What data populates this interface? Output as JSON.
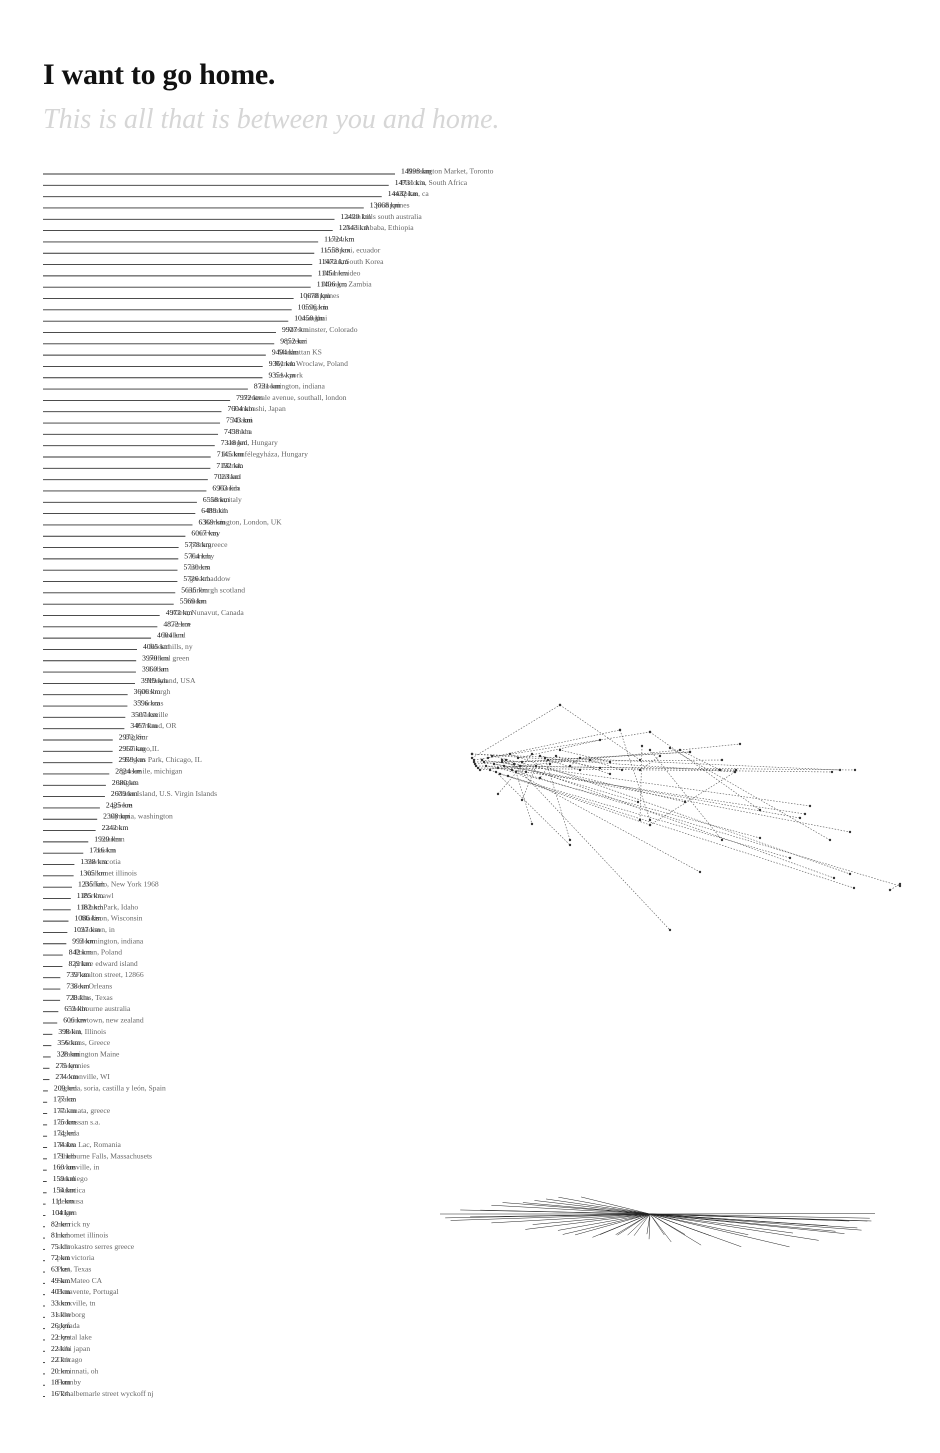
{
  "title": "I want to go home.",
  "subtitle": "This is all that is between you and home.",
  "chart_data": [
    {
      "type": "bar",
      "orientation": "horizontal",
      "unit": "km",
      "series": [
        {
          "value": 14998,
          "label": "Kensington Market, Toronto"
        },
        {
          "value": 14731,
          "label": "Pretoria, South Africa"
        },
        {
          "value": 14432,
          "label": "milpitas, ca"
        },
        {
          "value": 13668,
          "label": "philippines"
        },
        {
          "value": 12420,
          "label": "eden hills south australia"
        },
        {
          "value": 12343,
          "label": "Addis Ababa, Ethiopia"
        },
        {
          "value": 11724,
          "label": "cebu"
        },
        {
          "value": 11558,
          "label": "cotopaxi, ecuador"
        },
        {
          "value": 11472,
          "label": "Seoul, South Korea"
        },
        {
          "value": 11451,
          "label": "Montevideo"
        },
        {
          "value": 11406,
          "label": "Mongu, Zambia"
        },
        {
          "value": 10678,
          "label": "philippines"
        },
        {
          "value": 10596,
          "label": "bulgaria"
        },
        {
          "value": 10450,
          "label": "shanghai"
        },
        {
          "value": 9927,
          "label": "Westminster, Colorado"
        },
        {
          "value": 9852,
          "label": "prienai"
        },
        {
          "value": 9494,
          "label": "Manhattan KS"
        },
        {
          "value": 9361,
          "label": "Rynek Wroclaw, Poland"
        },
        {
          "value": 9351,
          "label": "new york"
        },
        {
          "value": 8731,
          "label": "bloomington, indiana"
        },
        {
          "value": 7972,
          "label": "brentvale avenue, southall, london"
        },
        {
          "value": 7604,
          "label": "Funabashi, Japan"
        },
        {
          "value": 7543,
          "label": "Miami"
        },
        {
          "value": 7458,
          "label": "Omaha"
        },
        {
          "value": 7318,
          "label": "szeged, Hungary"
        },
        {
          "value": 7145,
          "label": "Kiskunfélegyháza, Hungary"
        },
        {
          "value": 7132,
          "label": "Minsk"
        },
        {
          "value": 7023,
          "label": "ireland"
        },
        {
          "value": 6963,
          "label": "Florida"
        },
        {
          "value": 6558,
          "label": "rome, italy"
        },
        {
          "value": 6489,
          "label": "Brazil"
        },
        {
          "value": 6369,
          "label": "Kensington, London, UK"
        },
        {
          "value": 6067,
          "label": "norway"
        },
        {
          "value": 5778,
          "label": "patra greece"
        },
        {
          "value": 5764,
          "label": "Formby"
        },
        {
          "value": 5730,
          "label": "athens"
        },
        {
          "value": 5726,
          "label": "great baddow"
        },
        {
          "value": 5635,
          "label": "edinburgh scotland"
        },
        {
          "value": 5569,
          "label": "london"
        },
        {
          "value": 4972,
          "label": "Alert, Nunavut, Canada"
        },
        {
          "value": 4872,
          "label": "Greece"
        },
        {
          "value": 4604,
          "label": "Iceland"
        },
        {
          "value": 4005,
          "label": "forest hills, ny"
        },
        {
          "value": 3970,
          "label": "bethnal green"
        },
        {
          "value": 3960,
          "label": "Cuba"
        },
        {
          "value": 3919,
          "label": "Maryland, USA"
        },
        {
          "value": 3606,
          "label": "pittsburgh"
        },
        {
          "value": 3596,
          "label": "Caracas"
        },
        {
          "value": 3507,
          "label": "evansville"
        },
        {
          "value": 3467,
          "label": "Portland, OR"
        },
        {
          "value": 2972,
          "label": "Big Sur"
        },
        {
          "value": 2967,
          "label": "Chicago,IL"
        },
        {
          "value": 2959,
          "label": "Rogers Park, Chicago, IL"
        },
        {
          "value": 2824,
          "label": "grosse ile, michigan"
        },
        {
          "value": 2680,
          "label": "bogota"
        },
        {
          "value": 2639,
          "label": "Water Island, U.S. Virgin Islands"
        },
        {
          "value": 2425,
          "label": "greece"
        },
        {
          "value": 2308,
          "label": "olympia, washington"
        },
        {
          "value": 2242,
          "label": "cuba"
        },
        {
          "value": 1929,
          "label": "haarlem"
        },
        {
          "value": 1716,
          "label": "boston"
        },
        {
          "value": 1338,
          "label": "nova scotia"
        },
        {
          "value": 1305,
          "label": "mahomet illinois"
        },
        {
          "value": 1235,
          "label": "Buffalo, New York 1968"
        },
        {
          "value": 1185,
          "label": "Porthcawl"
        },
        {
          "value": 1182,
          "label": "Island Park, Idaho"
        },
        {
          "value": 1086,
          "label": "Madison, Wisconsin"
        },
        {
          "value": 1037,
          "label": "madison, in"
        },
        {
          "value": 993,
          "label": "bloomington, indiana"
        },
        {
          "value": 842,
          "label": "Poznan, Poland"
        },
        {
          "value": 829,
          "label": "prince edward island"
        },
        {
          "value": 739,
          "label": "57 walton street, 12866"
        },
        {
          "value": 738,
          "label": "New Orleans"
        },
        {
          "value": 728,
          "label": "Dallas, Texas"
        },
        {
          "value": 653,
          "label": "melbourne australia"
        },
        {
          "value": 606,
          "label": "arrowtown, new zealand"
        },
        {
          "value": 398,
          "label": "Joliet, Illinois"
        },
        {
          "value": 356,
          "label": "Athens, Greece"
        },
        {
          "value": 328,
          "label": "Farmington Maine"
        },
        {
          "value": 275,
          "label": "moyrnies"
        },
        {
          "value": 274,
          "label": "Hortonville, WI"
        },
        {
          "value": 209,
          "label": "ágreda, soria, castilla y león, Spain"
        },
        {
          "value": 177,
          "label": "patra"
        },
        {
          "value": 177,
          "label": "kalamata, greece"
        },
        {
          "value": 175,
          "label": "ardrossan s.a."
        },
        {
          "value": 174,
          "label": "ágreda"
        },
        {
          "value": 174,
          "label": "Balea Lac, Romania"
        },
        {
          "value": 171,
          "label": "Shelburne Falls, Massachusets"
        },
        {
          "value": 160,
          "label": "evansville, in"
        },
        {
          "value": 159,
          "label": "san diego"
        },
        {
          "value": 154,
          "label": "Subotica"
        },
        {
          "value": 111,
          "label": "petrousa"
        },
        {
          "value": 104,
          "label": "ittigen"
        },
        {
          "value": 82,
          "label": "merrick ny"
        },
        {
          "value": 81,
          "label": "mahomet illinois"
        },
        {
          "value": 75,
          "label": "sidirokastro serres greece"
        },
        {
          "value": 72,
          "label": "port victoria"
        },
        {
          "value": 63,
          "label": "Post, Texas"
        },
        {
          "value": 49,
          "label": "San Mateo CA"
        },
        {
          "value": 40,
          "label": "Benavente, Portugal"
        },
        {
          "value": 33,
          "label": "knoxville, tn"
        },
        {
          "value": 31,
          "label": "silkeborg"
        },
        {
          "value": 26,
          "label": "glyfada"
        },
        {
          "value": 22,
          "label": "crystal lake"
        },
        {
          "value": 22,
          "label": "shiki japan"
        },
        {
          "value": 22,
          "label": "Chicago"
        },
        {
          "value": 20,
          "label": "cincinnati, oh"
        },
        {
          "value": 18,
          "label": "Formby"
        },
        {
          "value": 16,
          "label": "774 albemarle street wyckoff nj"
        }
      ]
    }
  ],
  "colors": {
    "text": "#222222",
    "muted": "#666666",
    "subtitle": "#d6d6d6",
    "line": "#333333"
  }
}
